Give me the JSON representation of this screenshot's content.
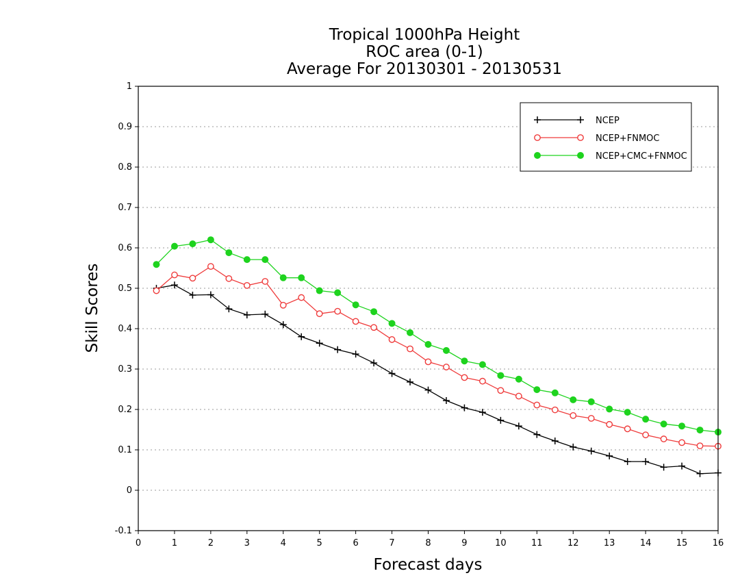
{
  "chart_data": {
    "type": "line",
    "title_lines": [
      "Tropical 1000hPa Height",
      "ROC area (0-1)",
      "Average For 20130301 - 20130531"
    ],
    "xlabel": "Forecast days",
    "ylabel": "Skill Scores",
    "xlim": [
      0,
      16
    ],
    "ylim": [
      -0.1,
      1
    ],
    "xticks": [
      0,
      1,
      2,
      3,
      4,
      5,
      6,
      7,
      8,
      9,
      10,
      11,
      12,
      13,
      14,
      15,
      16
    ],
    "xtick_labels": [
      "0",
      "1",
      "2",
      "3",
      "4",
      "5",
      "6",
      "7",
      "8",
      "9",
      "10",
      "11",
      "12",
      "13",
      "14",
      "15",
      "16"
    ],
    "yticks": [
      -0.1,
      0,
      0.1,
      0.2,
      0.3,
      0.4,
      0.5,
      0.6,
      0.7,
      0.8,
      0.9,
      1
    ],
    "ytick_labels": [
      "-0.1",
      "0",
      "0.1",
      "0.2",
      "0.3",
      "0.4",
      "0.5",
      "0.6",
      "0.7",
      "0.8",
      "0.9",
      "1"
    ],
    "grid": "horizontal dotted",
    "legend_position": "top-right",
    "x": [
      0.5,
      1,
      1.5,
      2,
      2.5,
      3,
      3.5,
      4,
      4.5,
      5,
      5.5,
      6,
      6.5,
      7,
      7.5,
      8,
      8.5,
      9,
      9.5,
      10,
      10.5,
      11,
      11.5,
      12,
      12.5,
      13,
      13.5,
      14,
      14.5,
      15,
      15.5,
      16
    ],
    "series": [
      {
        "name": "NCEP",
        "color": "#000000",
        "marker": "plus",
        "values": [
          0.5,
          0.508,
          0.483,
          0.484,
          0.449,
          0.434,
          0.436,
          0.41,
          0.38,
          0.364,
          0.348,
          0.337,
          0.315,
          0.289,
          0.268,
          0.248,
          0.222,
          0.204,
          0.193,
          0.173,
          0.159,
          0.138,
          0.122,
          0.107,
          0.097,
          0.085,
          0.071,
          0.071,
          0.057,
          0.06,
          0.041,
          0.043
        ]
      },
      {
        "name": "NCEP+FNMOC",
        "color": "#ef3b3b",
        "marker": "open-circle",
        "values": [
          0.494,
          0.533,
          0.525,
          0.554,
          0.524,
          0.507,
          0.517,
          0.458,
          0.477,
          0.437,
          0.443,
          0.418,
          0.403,
          0.373,
          0.35,
          0.318,
          0.305,
          0.279,
          0.27,
          0.247,
          0.233,
          0.211,
          0.199,
          0.185,
          0.178,
          0.163,
          0.152,
          0.137,
          0.127,
          0.118,
          0.11,
          0.109
        ]
      },
      {
        "name": "NCEP+CMC+FNMOC",
        "color": "#1ed31e",
        "marker": "filled-circle",
        "values": [
          0.559,
          0.604,
          0.61,
          0.62,
          0.588,
          0.571,
          0.571,
          0.526,
          0.526,
          0.494,
          0.489,
          0.459,
          0.442,
          0.413,
          0.39,
          0.361,
          0.346,
          0.32,
          0.311,
          0.284,
          0.275,
          0.249,
          0.241,
          0.224,
          0.219,
          0.201,
          0.193,
          0.176,
          0.164,
          0.159,
          0.149,
          0.144
        ]
      }
    ]
  }
}
